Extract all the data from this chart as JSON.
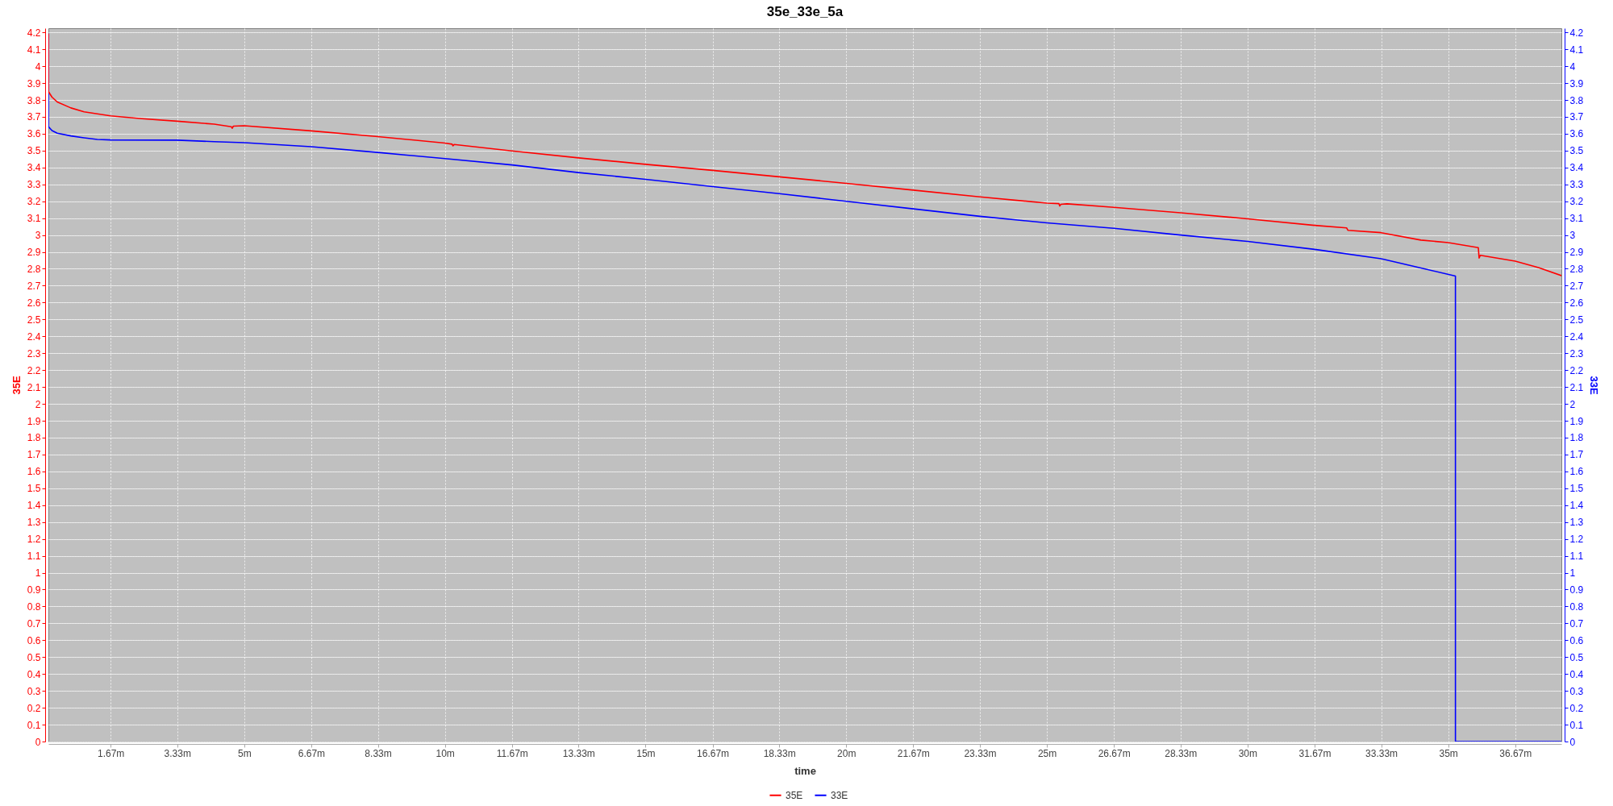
{
  "chart_data": {
    "type": "line",
    "title": "35e_33e_5a",
    "xlabel": "time",
    "ylabel": "35E",
    "y2label": "33E",
    "xlim": [
      0.12,
      37.82
    ],
    "xticks": [
      {
        "value": 1.67,
        "label": "1.67m"
      },
      {
        "value": 3.33,
        "label": "3.33m"
      },
      {
        "value": 5,
        "label": "5m"
      },
      {
        "value": 6.67,
        "label": "6.67m"
      },
      {
        "value": 8.33,
        "label": "8.33m"
      },
      {
        "value": 10,
        "label": "10m"
      },
      {
        "value": 11.67,
        "label": "11.67m"
      },
      {
        "value": 13.33,
        "label": "13.33m"
      },
      {
        "value": 15,
        "label": "15m"
      },
      {
        "value": 16.67,
        "label": "16.67m"
      },
      {
        "value": 18.33,
        "label": "18.33m"
      },
      {
        "value": 20,
        "label": "20m"
      },
      {
        "value": 21.67,
        "label": "21.67m"
      },
      {
        "value": 23.33,
        "label": "23.33m"
      },
      {
        "value": 25,
        "label": "25m"
      },
      {
        "value": 26.67,
        "label": "26.67m"
      },
      {
        "value": 28.33,
        "label": "28.33m"
      },
      {
        "value": 30,
        "label": "30m"
      },
      {
        "value": 31.67,
        "label": "31.67m"
      },
      {
        "value": 33.33,
        "label": "33.33m"
      },
      {
        "value": 35,
        "label": "35m"
      },
      {
        "value": 36.67,
        "label": "36.67m"
      }
    ],
    "ylim": [
      0,
      4.225
    ],
    "yticks": [
      0,
      0.1,
      0.2,
      0.3,
      0.4,
      0.5,
      0.6,
      0.7,
      0.8,
      0.9,
      1,
      1.1,
      1.2,
      1.3,
      1.4,
      1.5,
      1.6,
      1.7,
      1.8,
      1.9,
      2,
      2.1,
      2.2,
      2.3,
      2.4,
      2.5,
      2.6,
      2.7,
      2.8,
      2.9,
      3,
      3.1,
      3.2,
      3.3,
      3.4,
      3.5,
      3.6,
      3.7,
      3.8,
      3.9,
      4,
      4.1,
      4.2
    ],
    "y2lim": [
      0,
      4.225
    ],
    "y2ticks": [
      0,
      0.1,
      0.2,
      0.3,
      0.4,
      0.5,
      0.6,
      0.7,
      0.8,
      0.9,
      1,
      1.1,
      1.2,
      1.3,
      1.4,
      1.5,
      1.6,
      1.7,
      1.8,
      1.9,
      2,
      2.1,
      2.2,
      2.3,
      2.4,
      2.5,
      2.6,
      2.7,
      2.8,
      2.9,
      3,
      3.1,
      3.2,
      3.3,
      3.4,
      3.5,
      3.6,
      3.7,
      3.8,
      3.9,
      4,
      4.1,
      4.2
    ],
    "grid": true,
    "legend": "bottom",
    "series": [
      {
        "name": "35E",
        "color": "#ff0000",
        "axis": "y",
        "x": [
          0.12,
          0.12,
          0.21,
          0.34,
          0.68,
          1.01,
          1.67,
          2.45,
          3.33,
          4.25,
          4.68,
          4.7,
          4.73,
          5,
          6.67,
          8.33,
          10,
          10.18,
          10.2,
          10.23,
          11.67,
          13.33,
          15,
          16.67,
          18.33,
          20,
          21.67,
          23.33,
          25,
          25.3,
          25.32,
          25.35,
          25.5,
          26.67,
          28.33,
          30,
          31.67,
          32.47,
          32.5,
          33.33,
          34.32,
          35,
          35.75,
          35.77,
          35.8,
          36.67,
          37.25,
          37.82
        ],
        "values": [
          4.19,
          3.85,
          3.817,
          3.788,
          3.753,
          3.73,
          3.706,
          3.689,
          3.674,
          3.657,
          3.641,
          3.632,
          3.645,
          3.647,
          3.617,
          3.583,
          3.545,
          3.538,
          3.528,
          3.536,
          3.498,
          3.457,
          3.419,
          3.383,
          3.345,
          3.306,
          3.266,
          3.226,
          3.189,
          3.186,
          3.172,
          3.182,
          3.185,
          3.164,
          3.132,
          3.096,
          3.057,
          3.042,
          3.028,
          3.014,
          2.97,
          2.955,
          2.925,
          2.864,
          2.88,
          2.845,
          2.807,
          2.76
        ]
      },
      {
        "name": "33E",
        "color": "#0000ff",
        "axis": "y2",
        "x": [
          0.12,
          0.12,
          0.21,
          0.34,
          0.68,
          1.01,
          1.34,
          1.67,
          3.33,
          4.25,
          5,
          6.67,
          8.33,
          10,
          11.67,
          13.33,
          15,
          16.67,
          18.33,
          20,
          21.67,
          23.33,
          25,
          26.67,
          28.33,
          30,
          31.67,
          33.33,
          34.32,
          35.18,
          35.18,
          37.82
        ],
        "values": [
          4.19,
          3.642,
          3.619,
          3.603,
          3.587,
          3.576,
          3.566,
          3.563,
          3.562,
          3.553,
          3.547,
          3.523,
          3.489,
          3.453,
          3.415,
          3.37,
          3.33,
          3.287,
          3.245,
          3.2,
          3.155,
          3.111,
          3.072,
          3.04,
          3.0,
          2.962,
          2.915,
          2.86,
          2.805,
          2.757,
          0,
          0
        ]
      }
    ]
  }
}
